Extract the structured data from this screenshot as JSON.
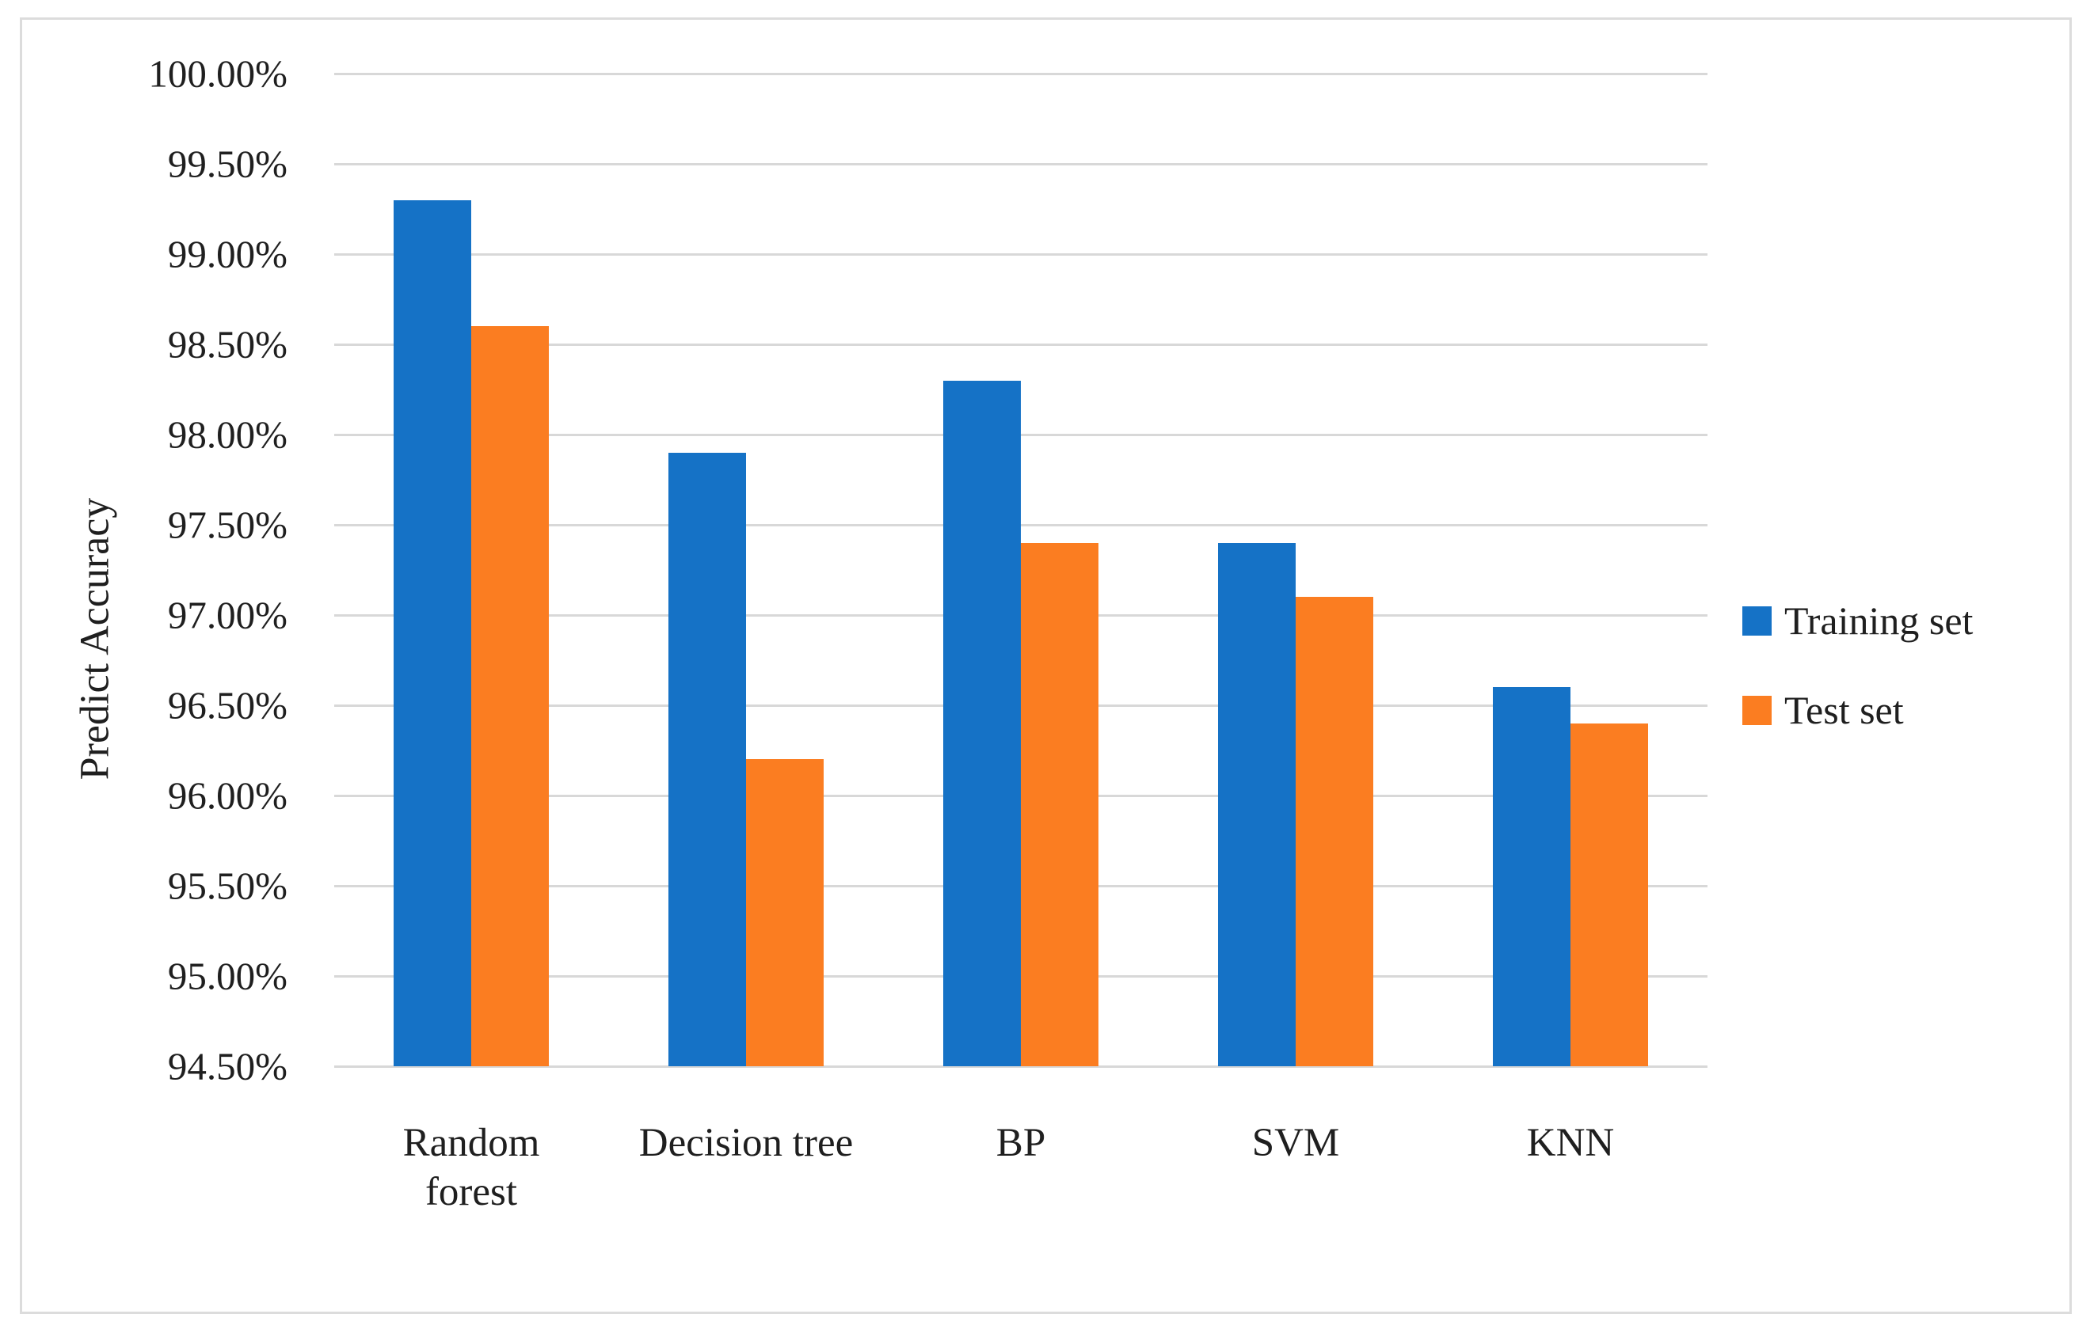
{
  "figure": {
    "background_color": "#ffffff",
    "border_color": "#dcdcdc"
  },
  "axis": {
    "ylabel": "Predict Accuracy",
    "yticks": [
      "100.00%",
      "99.50%",
      "99.00%",
      "98.50%",
      "98.00%",
      "97.50%",
      "97.00%",
      "96.50%",
      "96.00%",
      "95.50%",
      "95.00%",
      "94.50%"
    ]
  },
  "legend": {
    "entries": [
      {
        "label": "Training set",
        "color": "#1572c6"
      },
      {
        "label": "Test set",
        "color": "#fb7d21"
      }
    ]
  },
  "chart_data": {
    "type": "bar",
    "title": "",
    "xlabel": "",
    "ylabel": "Predict Accuracy",
    "categories": [
      "Random forest",
      "Decision tree",
      "BP",
      "SVM",
      "KNN"
    ],
    "series": [
      {
        "name": "Training set",
        "color": "#1572c6",
        "values": [
          99.3,
          97.9,
          98.3,
          97.4,
          96.6
        ]
      },
      {
        "name": "Test set",
        "color": "#fb7d21",
        "values": [
          98.6,
          96.2,
          97.4,
          97.1,
          96.4
        ]
      }
    ],
    "ylim": [
      94.5,
      100.0
    ],
    "ytick_step": 0.5,
    "ytick_format": "percent-2-decimals",
    "grid": true,
    "gridline_color": "#d8d8d8",
    "legend_position": "right"
  }
}
